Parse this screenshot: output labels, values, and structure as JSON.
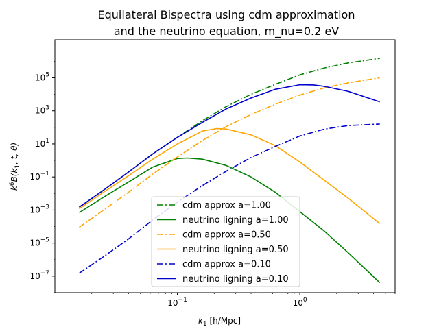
{
  "chart_data": {
    "type": "line",
    "title_line1": "Equilateral Bispectra using cdm approximation",
    "title_line2": "and the neutrino equation, m_nu=0.2 eV",
    "xlabel_base": "k",
    "xlabel_sub": "1",
    "xlabel_unit": " [h/Mpc]",
    "ylabel_pre": "k",
    "ylabel_sup": "6",
    "ylabel_mid": "B(k",
    "ylabel_sub": "1",
    "ylabel_post": ", t, θ)",
    "x_scale": "log",
    "y_scale": "log",
    "xlim": [
      0.01,
      6.0
    ],
    "ylim": [
      1e-08,
      20000000.0
    ],
    "x_ticks": [
      {
        "value": 0.1,
        "base": "10",
        "exp": "−1"
      },
      {
        "value": 1.0,
        "base": "10",
        "exp": "0"
      }
    ],
    "y_ticks": [
      {
        "value": 1e-07,
        "base": "10",
        "exp": "−7"
      },
      {
        "value": 1e-05,
        "base": "10",
        "exp": "−5"
      },
      {
        "value": 0.001,
        "base": "10",
        "exp": "−3"
      },
      {
        "value": 0.1,
        "base": "10",
        "exp": "−1"
      },
      {
        "value": 10,
        "base": "10",
        "exp": "1"
      },
      {
        "value": 1000,
        "base": "10",
        "exp": "3"
      },
      {
        "value": 100000,
        "base": "10",
        "exp": "5"
      }
    ],
    "legend_position": "lower center",
    "grid": false,
    "series": [
      {
        "name": "cdm approx a=1.00",
        "color": "#008000",
        "style": "dashdot",
        "x": [
          0.0158,
          0.025,
          0.04,
          0.063,
          0.1,
          0.16,
          0.25,
          0.4,
          0.63,
          1.0,
          1.6,
          2.5,
          4.5
        ],
        "y": [
          0.0015,
          0.016,
          0.2,
          2.5,
          25,
          250,
          1800,
          10000,
          40000,
          150000,
          400000,
          800000,
          1500000
        ]
      },
      {
        "name": "neutrino ligning a=1.00",
        "color": "#008000",
        "style": "solid",
        "x": [
          0.0158,
          0.025,
          0.04,
          0.063,
          0.1,
          0.12,
          0.16,
          0.25,
          0.4,
          0.63,
          1.0,
          1.6,
          2.5,
          4.5
        ],
        "y": [
          0.0007,
          0.006,
          0.05,
          0.4,
          1.3,
          1.4,
          1.2,
          0.5,
          0.1,
          0.012,
          0.0008,
          5e-05,
          2.5e-06,
          4e-08
        ]
      },
      {
        "name": "cdm approx a=0.50",
        "color": "#ffa500",
        "style": "dashdot",
        "x": [
          0.0158,
          0.025,
          0.04,
          0.063,
          0.1,
          0.16,
          0.25,
          0.4,
          0.63,
          1.0,
          1.6,
          2.5,
          4.5
        ],
        "y": [
          9e-05,
          0.001,
          0.012,
          0.15,
          1.6,
          16,
          110,
          600,
          2500,
          9000,
          25000,
          50000,
          100000
        ]
      },
      {
        "name": "neutrino ligning a=0.50",
        "color": "#ffa500",
        "style": "solid",
        "x": [
          0.0158,
          0.025,
          0.04,
          0.063,
          0.1,
          0.16,
          0.21,
          0.25,
          0.4,
          0.63,
          1.0,
          1.6,
          2.5,
          4.5
        ],
        "y": [
          0.0012,
          0.012,
          0.12,
          1.2,
          10,
          60,
          85,
          80,
          35,
          8,
          0.8,
          0.06,
          0.005,
          0.00015
        ]
      },
      {
        "name": "cdm approx a=0.10",
        "color": "#0000cd",
        "style": "dashdot",
        "x": [
          0.0158,
          0.025,
          0.04,
          0.063,
          0.1,
          0.16,
          0.25,
          0.4,
          0.63,
          1.0,
          1.6,
          2.5,
          4.5
        ],
        "y": [
          1.5e-07,
          1.5e-06,
          1.8e-05,
          0.00025,
          0.003,
          0.03,
          0.22,
          1.5,
          7,
          30,
          80,
          130,
          160
        ]
      },
      {
        "name": "neutrino ligning a=0.10",
        "color": "#0000cd",
        "style": "solid",
        "x": [
          0.0158,
          0.025,
          0.04,
          0.063,
          0.1,
          0.16,
          0.25,
          0.4,
          0.63,
          1.0,
          1.3,
          1.6,
          2.5,
          4.5
        ],
        "y": [
          0.0015,
          0.016,
          0.2,
          2.5,
          25,
          200,
          1300,
          6000,
          20000,
          38000,
          37000,
          30000,
          15000,
          3500
        ]
      }
    ]
  }
}
